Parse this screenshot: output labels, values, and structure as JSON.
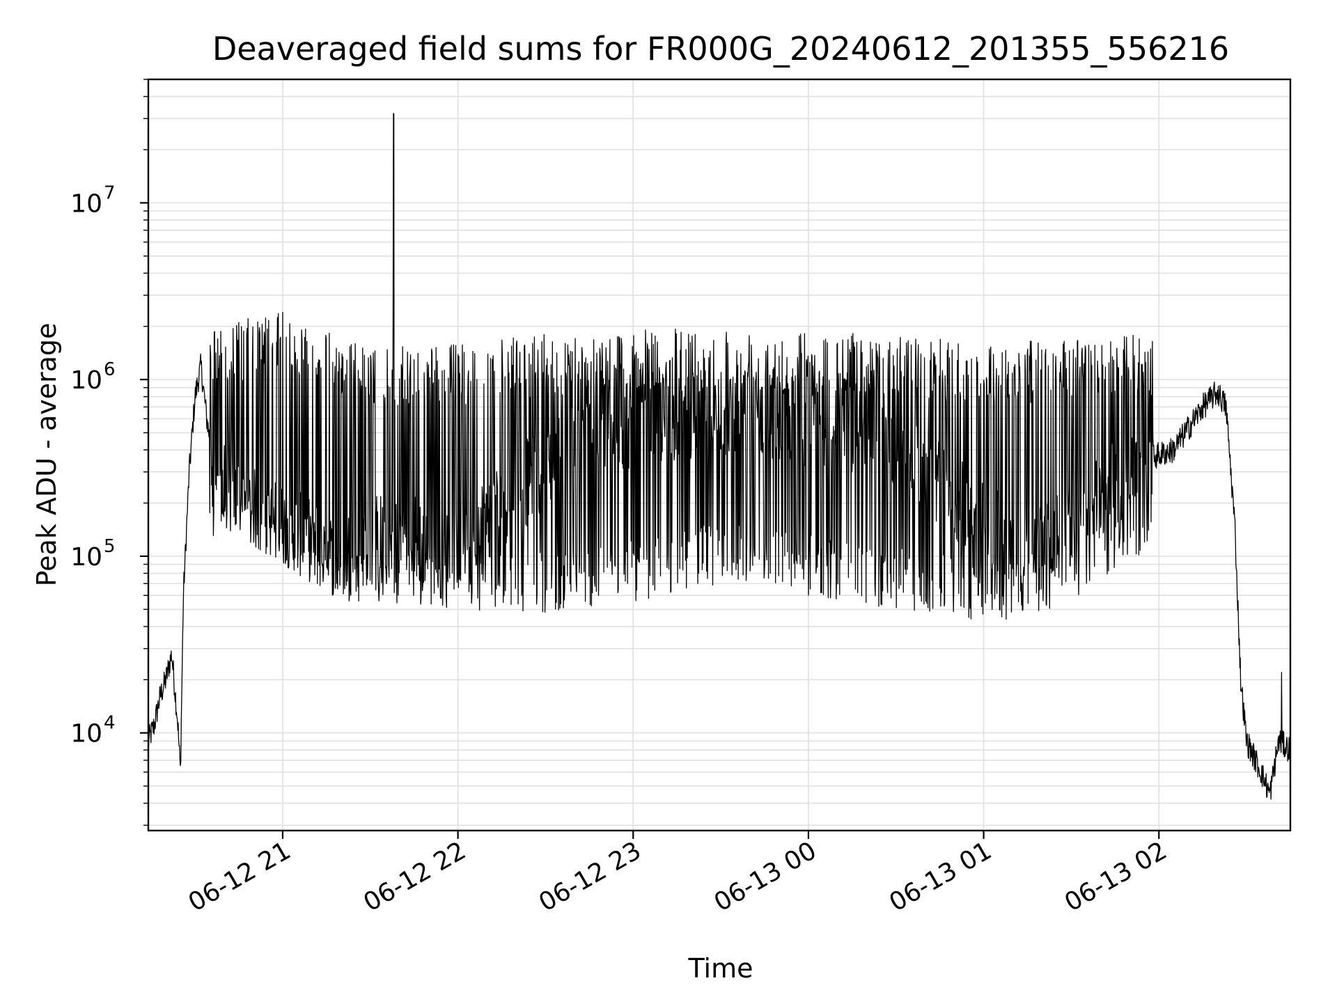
{
  "chart_data": {
    "type": "line",
    "title": "Deaveraged field sums for FR000G_20240612_201355_556216",
    "xlabel": "Time",
    "ylabel": "Peak ADU - average",
    "yscale": "log",
    "xlim": [
      "2024-06-12 20:14",
      "2024-06-13 02:45"
    ],
    "ylim": [
      2800,
      50000000
    ],
    "grid": true,
    "grid_color": "#e0e0e0",
    "line_color": "#000000",
    "x_ticks": [
      {
        "value": "2024-06-12 21:00",
        "label": "06-12 21"
      },
      {
        "value": "2024-06-12 22:00",
        "label": "06-12 22"
      },
      {
        "value": "2024-06-12 23:00",
        "label": "06-12 23"
      },
      {
        "value": "2024-06-13 00:00",
        "label": "06-13 00"
      },
      {
        "value": "2024-06-13 01:00",
        "label": "06-13 01"
      },
      {
        "value": "2024-06-13 02:00",
        "label": "06-13 02"
      }
    ],
    "y_ticks": [
      {
        "value": 10000,
        "base": "10",
        "exp": "4"
      },
      {
        "value": 100000,
        "base": "10",
        "exp": "5"
      },
      {
        "value": 1000000,
        "base": "10",
        "exp": "6"
      },
      {
        "value": 10000000,
        "base": "10",
        "exp": "7"
      }
    ],
    "series": [
      {
        "points": [
          {
            "x": "2024-06-12 20:14",
            "y": 9000
          },
          {
            "x": "2024-06-12 20:16",
            "y": 11000
          },
          {
            "x": "2024-06-12 20:18",
            "y": 16000
          },
          {
            "x": "2024-06-12 20:20",
            "y": 20000
          },
          {
            "x": "2024-06-12 20:22",
            "y": 28000
          },
          {
            "x": "2024-06-12 20:24",
            "y": 12000
          },
          {
            "x": "2024-06-12 20:25",
            "y": 6000
          },
          {
            "x": "2024-06-12 20:26",
            "y": 60000
          },
          {
            "x": "2024-06-12 20:28",
            "y": 300000
          },
          {
            "x": "2024-06-12 20:30",
            "y": 800000
          },
          {
            "x": "2024-06-12 20:32",
            "y": 1200000
          },
          {
            "x": "2024-06-12 20:34",
            "y": 600000
          },
          {
            "x": "2024-06-12 20:37",
            "y": 300000
          },
          {
            "x": "2024-06-12 20:45",
            "y": 200000
          },
          {
            "x": "2024-06-12 20:55",
            "y": 160000
          },
          {
            "x": "2024-06-12 21:10",
            "y": 120000
          },
          {
            "x": "2024-06-12 21:20",
            "y": 100000
          },
          {
            "x": "2024-06-12 21:40",
            "y": 150000
          },
          {
            "x": "2024-06-12 21:55",
            "y": 100000
          },
          {
            "x": "2024-06-12 22:15",
            "y": 200000
          },
          {
            "x": "2024-06-12 22:45",
            "y": 500000
          },
          {
            "x": "2024-06-12 23:15",
            "y": 600000
          },
          {
            "x": "2024-06-12 23:45",
            "y": 650000
          },
          {
            "x": "2024-06-13 00:15",
            "y": 500000
          },
          {
            "x": "2024-06-13 00:40",
            "y": 300000
          },
          {
            "x": "2024-06-13 01:00",
            "y": 150000
          },
          {
            "x": "2024-06-13 01:20",
            "y": 110000
          },
          {
            "x": "2024-06-13 01:40",
            "y": 220000
          },
          {
            "x": "2024-06-13 01:55",
            "y": 350000
          },
          {
            "x": "2024-06-13 02:05",
            "y": 400000
          },
          {
            "x": "2024-06-13 02:15",
            "y": 700000
          },
          {
            "x": "2024-06-13 02:20",
            "y": 850000
          },
          {
            "x": "2024-06-13 02:23",
            "y": 700000
          },
          {
            "x": "2024-06-13 02:26",
            "y": 150000
          },
          {
            "x": "2024-06-13 02:28",
            "y": 20000
          },
          {
            "x": "2024-06-13 02:30",
            "y": 9000
          },
          {
            "x": "2024-06-13 02:35",
            "y": 6000
          },
          {
            "x": "2024-06-13 02:38",
            "y": 4500
          },
          {
            "x": "2024-06-13 02:41",
            "y": 9000
          },
          {
            "x": "2024-06-13 02:45",
            "y": 8000
          }
        ]
      }
    ],
    "envelope": {
      "upper": [
        {
          "x": "2024-06-12 20:32",
          "y": 2000000
        },
        {
          "x": "2024-06-12 21:00",
          "y": 2400000
        },
        {
          "x": "2024-06-12 21:30",
          "y": 1500000
        },
        {
          "x": "2024-06-12 22:00",
          "y": 1600000
        },
        {
          "x": "2024-06-12 22:30",
          "y": 1800000
        },
        {
          "x": "2024-06-12 23:00",
          "y": 1900000
        },
        {
          "x": "2024-06-12 23:30",
          "y": 2000000
        },
        {
          "x": "2024-06-13 00:00",
          "y": 1900000
        },
        {
          "x": "2024-06-13 00:30",
          "y": 1800000
        },
        {
          "x": "2024-06-13 01:00",
          "y": 1600000
        },
        {
          "x": "2024-06-13 01:30",
          "y": 1700000
        },
        {
          "x": "2024-06-13 01:55",
          "y": 1800000
        }
      ],
      "lower": [
        {
          "x": "2024-06-12 20:45",
          "y": 130000
        },
        {
          "x": "2024-06-12 21:00",
          "y": 90000
        },
        {
          "x": "2024-06-12 21:20",
          "y": 55000
        },
        {
          "x": "2024-06-12 21:45",
          "y": 50000
        },
        {
          "x": "2024-06-12 22:00",
          "y": 50000
        },
        {
          "x": "2024-06-12 22:30",
          "y": 48000
        },
        {
          "x": "2024-06-12 23:00",
          "y": 55000
        },
        {
          "x": "2024-06-12 23:30",
          "y": 70000
        },
        {
          "x": "2024-06-13 00:00",
          "y": 60000
        },
        {
          "x": "2024-06-13 00:30",
          "y": 50000
        },
        {
          "x": "2024-06-13 01:00",
          "y": 42000
        },
        {
          "x": "2024-06-13 01:30",
          "y": 50000
        },
        {
          "x": "2024-06-13 01:50",
          "y": 100000
        }
      ],
      "oscillation_start": "2024-06-12 20:35",
      "oscillation_end": "2024-06-13 01:58"
    },
    "spikes": [
      {
        "x": "2024-06-12 21:00",
        "y": 2400000
      },
      {
        "x": "2024-06-12 21:38",
        "y": 32000000
      },
      {
        "x": "2024-06-13 02:42",
        "y": 22000
      }
    ]
  }
}
